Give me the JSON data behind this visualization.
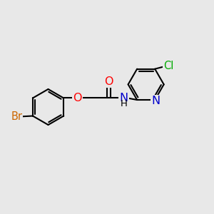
{
  "bg_color": "#e8e8e8",
  "bond_color": "#000000",
  "bond_width": 1.5,
  "dbo": 0.055,
  "atom_colors": {
    "Br": "#cc6600",
    "O": "#ff0000",
    "N": "#0000cc",
    "Cl": "#00aa00",
    "C": "#000000",
    "H": "#000000"
  },
  "font_size": 10.5
}
